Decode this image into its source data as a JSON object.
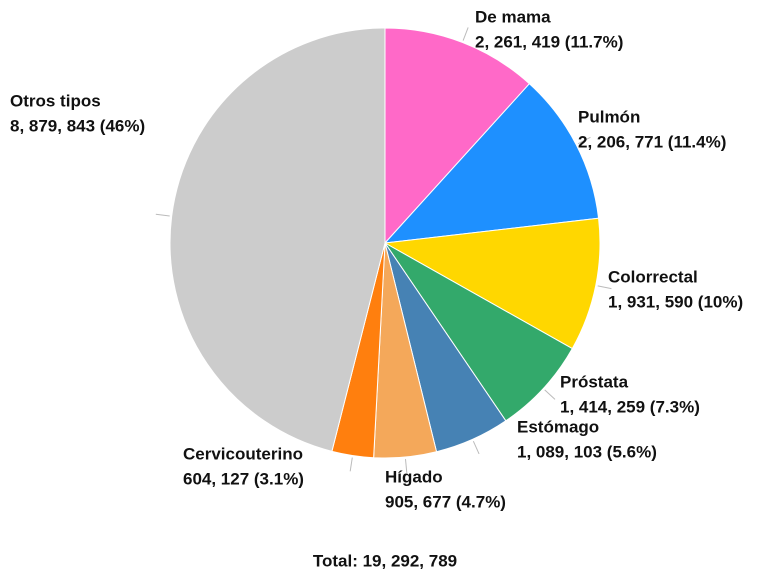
{
  "chart_data": {
    "type": "pie",
    "categories": [
      "De mama",
      "Pulmón",
      "Colorrectal",
      "Próstata",
      "Estómago",
      "Hígado",
      "Cervicouterino",
      "Otros tipos"
    ],
    "values": [
      2261419,
      2206771,
      1931590,
      1414259,
      1089103,
      905677,
      604127,
      8879843
    ],
    "value_labels": [
      "2, 261, 419 (11.7%)",
      "2, 206, 771 (11.4%)",
      "1, 931, 590 (10%)",
      "1, 414, 259 (7.3%)",
      "1, 089, 103 (5.6%)",
      "905, 677 (4.7%)",
      "604, 127 (3.1%)",
      "8, 879, 843 (46%)"
    ],
    "colors": [
      "#ff69c8",
      "#1e90ff",
      "#ffd700",
      "#33a96b",
      "#4682b4",
      "#f4a85a",
      "#ff7f0e",
      "#cccccc"
    ],
    "total_label": "Total: 19, 292, 789"
  }
}
